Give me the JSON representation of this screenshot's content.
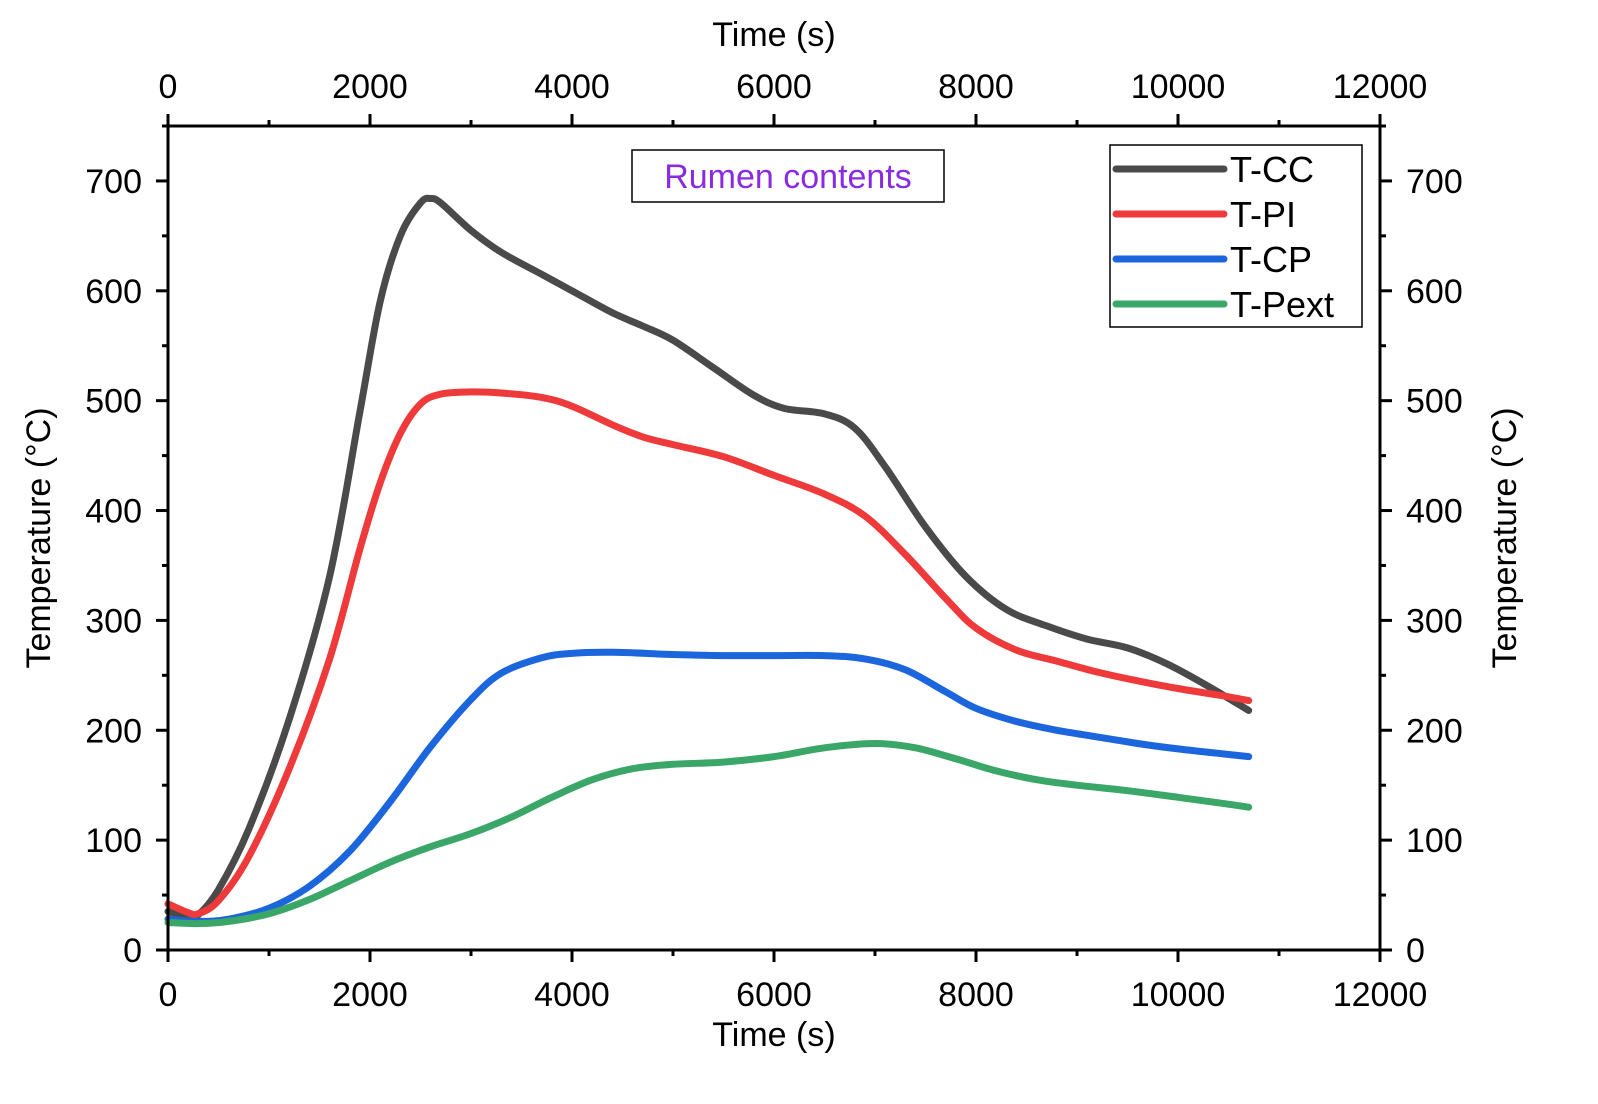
{
  "chart_data": {
    "type": "line",
    "annotation": "Rumen contents",
    "xlabel_bottom": "Time (s)",
    "xlabel_top": "Time (s)",
    "ylabel_left": "Temperature (°C)",
    "ylabel_right": "Temperature (°C)",
    "xlim": [
      0,
      12000
    ],
    "ylim": [
      0,
      750
    ],
    "x_ticks": [
      0,
      2000,
      4000,
      6000,
      8000,
      10000,
      12000
    ],
    "x_tick_labels": [
      "0",
      "2000",
      "4000",
      "6000",
      "8000",
      "10000",
      "12000"
    ],
    "y_ticks": [
      0,
      100,
      200,
      300,
      400,
      500,
      600,
      700
    ],
    "y_tick_labels": [
      "0",
      "100",
      "200",
      "300",
      "400",
      "500",
      "600",
      "700"
    ],
    "grid": false,
    "legend_position": "top-right",
    "series": [
      {
        "name": "T-CC",
        "color": "#4a4a4a",
        "x": [
          0,
          200,
          300,
          500,
          800,
          1200,
          1600,
          1900,
          2100,
          2300,
          2500,
          2600,
          2700,
          3000,
          3300,
          3700,
          4000,
          4400,
          4700,
          5000,
          5400,
          5800,
          6100,
          6500,
          6800,
          7100,
          7500,
          7900,
          8300,
          8700,
          9100,
          9500,
          9900,
          10300,
          10700
        ],
        "y": [
          35,
          30,
          32,
          55,
          110,
          210,
          340,
          490,
          590,
          650,
          680,
          684,
          680,
          655,
          635,
          615,
          600,
          580,
          568,
          555,
          530,
          505,
          493,
          488,
          475,
          440,
          385,
          340,
          310,
          295,
          283,
          275,
          260,
          240,
          218
        ]
      },
      {
        "name": "T-PI",
        "color": "#ee3a3a",
        "x": [
          0,
          200,
          300,
          500,
          800,
          1200,
          1600,
          1900,
          2100,
          2300,
          2500,
          2700,
          3000,
          3300,
          3700,
          4000,
          4400,
          4700,
          5000,
          5500,
          6000,
          6500,
          6900,
          7300,
          7700,
          8000,
          8400,
          8800,
          9200,
          9600,
          10000,
          10400,
          10700
        ],
        "y": [
          42,
          34,
          33,
          45,
          85,
          165,
          265,
          365,
          425,
          470,
          497,
          506,
          508,
          507,
          503,
          495,
          478,
          467,
          460,
          449,
          432,
          415,
          395,
          360,
          320,
          293,
          273,
          263,
          253,
          245,
          238,
          232,
          227
        ]
      },
      {
        "name": "T-CP",
        "color": "#1c66dd",
        "x": [
          0,
          300,
          600,
          1000,
          1400,
          1800,
          2200,
          2600,
          3000,
          3300,
          3700,
          4000,
          4400,
          5000,
          5500,
          6000,
          6500,
          6900,
          7300,
          7700,
          8000,
          8400,
          8800,
          9200,
          9600,
          10000,
          10400,
          10700
        ],
        "y": [
          28,
          26,
          28,
          38,
          58,
          90,
          135,
          185,
          228,
          252,
          266,
          270,
          271,
          269,
          268,
          268,
          268,
          265,
          255,
          235,
          220,
          208,
          200,
          194,
          188,
          183,
          179,
          176
        ]
      },
      {
        "name": "T-Pext",
        "color": "#3aa768",
        "x": [
          0,
          300,
          600,
          1000,
          1400,
          1800,
          2200,
          2600,
          3000,
          3400,
          3800,
          4200,
          4600,
          5000,
          5500,
          6000,
          6500,
          7000,
          7400,
          7800,
          8200,
          8600,
          9000,
          9500,
          10000,
          10400,
          10700
        ],
        "y": [
          25,
          24,
          26,
          33,
          46,
          63,
          80,
          94,
          106,
          121,
          139,
          155,
          165,
          169,
          171,
          176,
          184,
          188,
          184,
          174,
          163,
          155,
          150,
          145,
          139,
          134,
          130
        ]
      }
    ]
  }
}
